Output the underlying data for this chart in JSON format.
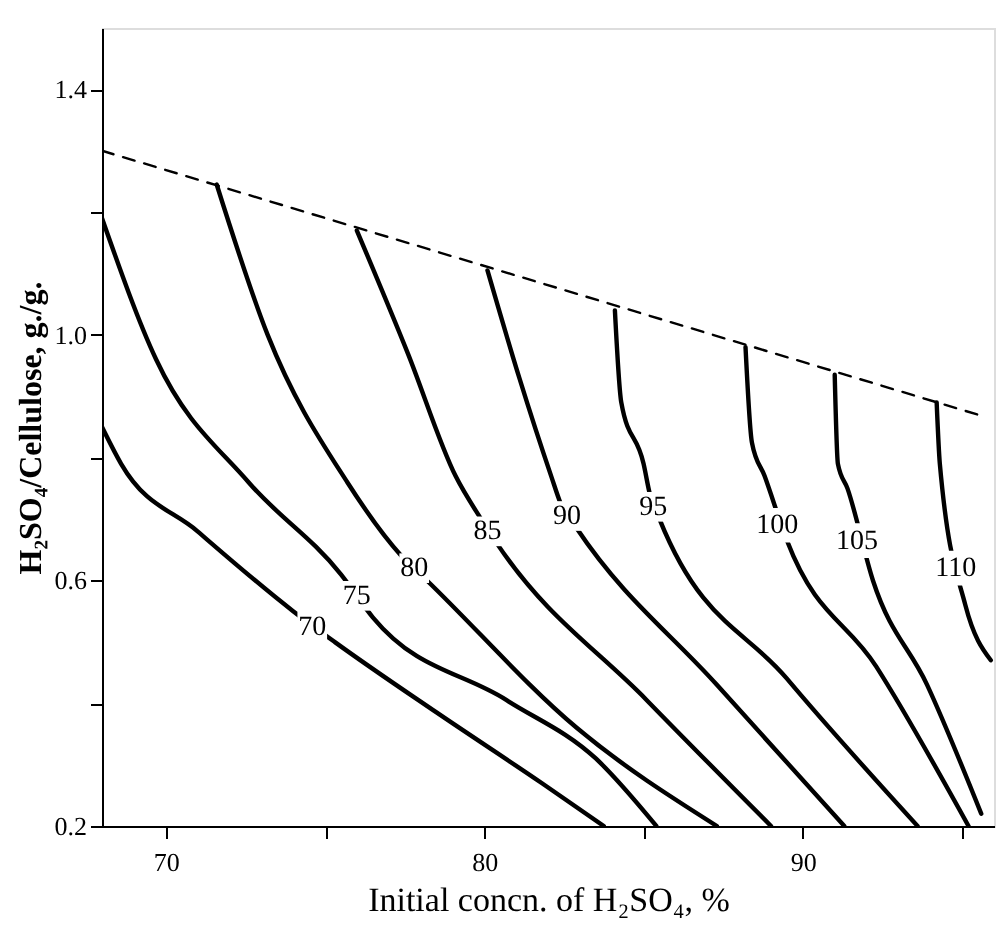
{
  "chart_data": {
    "type": "line",
    "xlabel": "Initial concn. of H₂SO₄, %",
    "ylabel": "H₂SO₄/Cellulose, g./g.",
    "xlim": [
      68,
      96
    ],
    "xticks": [
      70,
      {
        "value": 75,
        "label": null
      },
      80,
      {
        "value": 85,
        "label": null
      },
      90,
      {
        "value": 95,
        "label": null
      }
    ],
    "ylim": [
      0.2,
      1.5
    ],
    "yticks": [
      0.2,
      {
        "value": 0.4,
        "label": null
      },
      0.6,
      {
        "value": 0.8,
        "label": null
      },
      {
        "value": 1.0,
        "label": "1.0"
      },
      {
        "value": 1.2,
        "label": null
      },
      1.4
    ],
    "grid": false,
    "legend": false,
    "marker": "none",
    "line_style": "solid",
    "series": [
      {
        "color": "#000000",
        "x": [
          68,
          68.6,
          71,
          74,
          75.3,
          78.5,
          81.8,
          83.75
        ],
        "values": [
          0.85,
          0.79,
          0.68,
          0.55,
          0.5,
          0.385,
          0.27,
          0.2
        ]
      },
      {
        "color": "#000000",
        "x": [
          68,
          69.7,
          72.6,
          75.5,
          76.5,
          80.7,
          83.5,
          85.4
        ],
        "values": [
          1.19,
          0.96,
          0.76,
          0.61,
          0.54,
          0.405,
          0.31,
          0.2
        ]
      },
      {
        "color": "#000000",
        "x": [
          71.6,
          73.2,
          75.7,
          77.4,
          78.2,
          82.9,
          87.3
        ],
        "values": [
          1.245,
          1.0,
          0.76,
          0.64,
          0.6,
          0.36,
          0.2
        ]
      },
      {
        "color": "#000000",
        "x": [
          76.0,
          77.6,
          79.1,
          79.9,
          80.4,
          85.1,
          89.0
        ],
        "values": [
          1.17,
          0.97,
          0.77,
          0.7,
          0.66,
          0.405,
          0.2
        ]
      },
      {
        "color": "#000000",
        "x": [
          80.1,
          81.1,
          82.1,
          82.4,
          82.9,
          87.3,
          91.3
        ],
        "values": [
          1.105,
          0.93,
          0.77,
          0.725,
          0.685,
          0.43,
          0.2
        ]
      },
      {
        "color": "#000000",
        "x": [
          84.1,
          84.3,
          85.0,
          85.2,
          85.5,
          89.5,
          93.6
        ],
        "values": [
          1.04,
          0.89,
          0.79,
          0.74,
          0.7,
          0.44,
          0.2
        ]
      },
      {
        "color": "#000000",
        "x": [
          88.2,
          88.4,
          88.8,
          89.5,
          92.3,
          95.2
        ],
        "values": [
          0.98,
          0.825,
          0.77,
          0.665,
          0.46,
          0.2
        ]
      },
      {
        "color": "#000000",
        "x": [
          91.0,
          91.1,
          91.4,
          92.2,
          93.9,
          95.6
        ],
        "values": [
          0.935,
          0.79,
          0.75,
          0.6,
          0.43,
          0.22
        ]
      },
      {
        "color": "#000000",
        "x": [
          94.2,
          94.3,
          95.1,
          95.9
        ],
        "values": [
          0.89,
          0.79,
          0.56,
          0.47
        ]
      },
      {
        "color": "#000000",
        "line_style": "dashed",
        "x": [
          68,
          95.5
        ],
        "values": [
          1.3,
          0.87
        ]
      }
    ],
    "annotations": [
      {
        "text": "70",
        "x": 74.6,
        "y": 0.525
      },
      {
        "text": "75",
        "x": 76.0,
        "y": 0.575
      },
      {
        "text": "80",
        "x": 77.8,
        "y": 0.62
      },
      {
        "text": "85",
        "x": 80.1,
        "y": 0.68
      },
      {
        "text": "90",
        "x": 82.6,
        "y": 0.705
      },
      {
        "text": "95",
        "x": 85.3,
        "y": 0.72
      },
      {
        "text": "100",
        "x": 89.2,
        "y": 0.69
      },
      {
        "text": "105",
        "x": 91.7,
        "y": 0.665
      },
      {
        "text": "110",
        "x": 94.8,
        "y": 0.62
      }
    ]
  }
}
